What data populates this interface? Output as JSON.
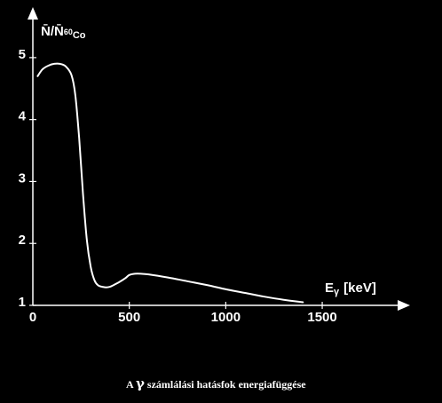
{
  "chart_data": {
    "type": "line",
    "caption": {
      "prefix": "A ",
      "symbol": "γ",
      "suffix": " számlálási hatásfok energiafüggése"
    },
    "ylabel": {
      "main": "N̄/N̄",
      "subscript_number": "60",
      "subscript_text": "Co"
    },
    "xlabel": {
      "symbol": "E",
      "subscript": "γ",
      "unit": "[keV]"
    },
    "xlim": [
      0,
      1900
    ],
    "ylim": [
      1,
      5.5
    ],
    "x_ticks": [
      {
        "value": 0,
        "label": "0"
      },
      {
        "value": 500,
        "label": "500"
      },
      {
        "value": 1000,
        "label": "1000"
      },
      {
        "value": 1500,
        "label": "1500"
      }
    ],
    "y_ticks": [
      {
        "value": 1,
        "label": "1"
      },
      {
        "value": 2,
        "label": "2"
      },
      {
        "value": 3,
        "label": "3"
      },
      {
        "value": 4,
        "label": "4"
      },
      {
        "value": 5,
        "label": "5"
      }
    ],
    "grid": false,
    "legend": "none",
    "series": [
      {
        "x": [
          25,
          50,
          80,
          110,
          140,
          170,
          200,
          220,
          240,
          260,
          280,
          300,
          320,
          340,
          360,
          380,
          400,
          420,
          450,
          480,
          500,
          530,
          560,
          600,
          700,
          800,
          900,
          1000,
          1100,
          1200,
          1300,
          1400
        ],
        "values": [
          4.7,
          4.81,
          4.87,
          4.9,
          4.9,
          4.86,
          4.72,
          4.4,
          3.7,
          2.8,
          2.05,
          1.62,
          1.4,
          1.32,
          1.3,
          1.29,
          1.3,
          1.33,
          1.38,
          1.44,
          1.49,
          1.51,
          1.51,
          1.5,
          1.45,
          1.39,
          1.33,
          1.26,
          1.2,
          1.14,
          1.09,
          1.05
        ]
      }
    ],
    "colors": {
      "background": "#000000",
      "foreground": "#ffffff"
    }
  }
}
